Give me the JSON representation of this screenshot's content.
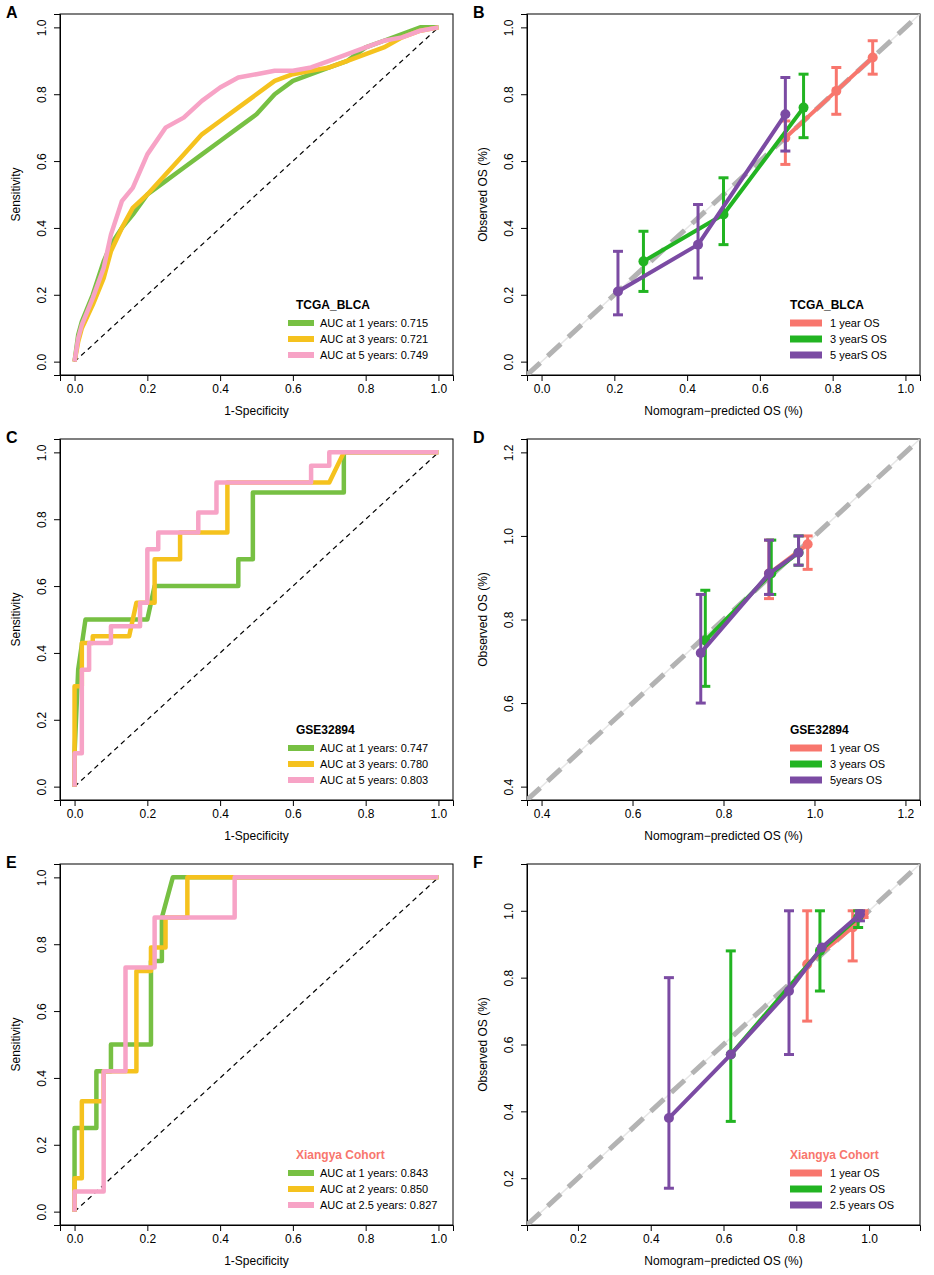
{
  "chart_data": [
    {
      "type": "line",
      "title": "A",
      "x_label": "1-Specificity",
      "y_label": "Sensitivity",
      "legend_title": "TCGA_BLCA",
      "legend": "bottom-right",
      "xlim": [
        -0.04,
        1.04
      ],
      "ylim": [
        -0.04,
        1.04
      ],
      "xticks": [
        {
          "value": 0,
          "label": "0.0"
        },
        {
          "value": 0.2,
          "label": "0.2"
        },
        {
          "value": 0.4,
          "label": "0.4"
        },
        {
          "value": 0.6,
          "label": "0.6"
        },
        {
          "value": 0.8,
          "label": "0.8"
        },
        {
          "value": 1,
          "label": "1.0"
        }
      ],
      "yticks": [
        {
          "value": 0,
          "label": "0.0"
        },
        {
          "value": 0.2,
          "label": "0.2"
        },
        {
          "value": 0.4,
          "label": "0.4"
        },
        {
          "value": 0.6,
          "label": "0.6"
        },
        {
          "value": 0.8,
          "label": "0.8"
        },
        {
          "value": 1,
          "label": "1.0"
        }
      ],
      "series": [
        {
          "name": "AUC at 1 years: 0.715",
          "color": "#77c043",
          "x": [
            0,
            0.01,
            0.02,
            0.05,
            0.08,
            0.1,
            0.13,
            0.16,
            0.2,
            0.25,
            0.3,
            0.35,
            0.4,
            0.45,
            0.5,
            0.55,
            0.6,
            0.65,
            0.7,
            0.75,
            0.8,
            0.85,
            0.9,
            0.95,
            1.0
          ],
          "values": [
            0,
            0.08,
            0.12,
            0.2,
            0.3,
            0.35,
            0.4,
            0.44,
            0.5,
            0.54,
            0.58,
            0.62,
            0.66,
            0.7,
            0.74,
            0.8,
            0.84,
            0.86,
            0.88,
            0.9,
            0.94,
            0.96,
            0.98,
            1.0,
            1.0
          ]
        },
        {
          "name": "AUC at 3 years: 0.721",
          "color": "#f5c21e",
          "x": [
            0,
            0.01,
            0.02,
            0.05,
            0.08,
            0.1,
            0.13,
            0.16,
            0.2,
            0.25,
            0.3,
            0.35,
            0.4,
            0.45,
            0.5,
            0.55,
            0.6,
            0.65,
            0.7,
            0.75,
            0.8,
            0.85,
            0.9,
            0.95,
            1.0
          ],
          "values": [
            0,
            0.06,
            0.1,
            0.17,
            0.25,
            0.33,
            0.4,
            0.46,
            0.5,
            0.56,
            0.62,
            0.68,
            0.72,
            0.76,
            0.8,
            0.84,
            0.86,
            0.87,
            0.88,
            0.9,
            0.92,
            0.94,
            0.97,
            0.99,
            1.0
          ]
        },
        {
          "name": "AUC at 5 years: 0.749",
          "color": "#f7a3c6",
          "x": [
            0,
            0.01,
            0.02,
            0.05,
            0.08,
            0.1,
            0.13,
            0.16,
            0.2,
            0.25,
            0.3,
            0.35,
            0.4,
            0.45,
            0.5,
            0.55,
            0.6,
            0.65,
            0.7,
            0.75,
            0.8,
            0.85,
            0.9,
            0.95,
            1.0
          ],
          "values": [
            0,
            0.07,
            0.11,
            0.19,
            0.28,
            0.38,
            0.48,
            0.52,
            0.62,
            0.7,
            0.73,
            0.78,
            0.82,
            0.85,
            0.86,
            0.87,
            0.87,
            0.88,
            0.9,
            0.92,
            0.94,
            0.96,
            0.97,
            0.99,
            1.0
          ]
        }
      ]
    },
    {
      "type": "line",
      "title": "B",
      "x_label": "Nomogram−predicted OS (%)",
      "y_label": "Observed OS (%)",
      "legend_title": "TCGA_BLCA",
      "legend": "bottom-right",
      "marker": "circle",
      "xlim": [
        -0.04,
        1.04
      ],
      "ylim": [
        -0.04,
        1.04
      ],
      "xticks": [
        {
          "value": 0,
          "label": "0.0"
        },
        {
          "value": 0.2,
          "label": "0.2"
        },
        {
          "value": 0.4,
          "label": "0.4"
        },
        {
          "value": 0.6,
          "label": "0.6"
        },
        {
          "value": 0.8,
          "label": "0.8"
        },
        {
          "value": 1,
          "label": "1.0"
        }
      ],
      "yticks": [
        {
          "value": 0,
          "label": "0.0"
        },
        {
          "value": 0.2,
          "label": "0.2"
        },
        {
          "value": 0.4,
          "label": "0.4"
        },
        {
          "value": 0.6,
          "label": "0.6"
        },
        {
          "value": 0.8,
          "label": "0.8"
        },
        {
          "value": 1,
          "label": "1.0"
        }
      ],
      "series": [
        {
          "name": "1 year OS",
          "color": "#f8766d",
          "x": [
            0.67,
            0.81,
            0.91
          ],
          "values": [
            0.67,
            0.81,
            0.91
          ],
          "lower": [
            0.59,
            0.74,
            0.86
          ],
          "upper": [
            0.72,
            0.88,
            0.96
          ]
        },
        {
          "name": "3 yearS OS",
          "color": "#22b422",
          "x": [
            0.28,
            0.5,
            0.72
          ],
          "values": [
            0.3,
            0.44,
            0.76
          ],
          "lower": [
            0.21,
            0.35,
            0.67
          ],
          "upper": [
            0.39,
            0.55,
            0.86
          ]
        },
        {
          "name": "5 yearS OS",
          "color": "#7b4ba3",
          "x": [
            0.21,
            0.43,
            0.67
          ],
          "values": [
            0.21,
            0.35,
            0.74
          ],
          "lower": [
            0.14,
            0.25,
            0.63
          ],
          "upper": [
            0.33,
            0.47,
            0.85
          ]
        }
      ]
    },
    {
      "type": "line",
      "title": "C",
      "x_label": "1-Specificity",
      "y_label": "Sensitivity",
      "legend_title": "GSE32894",
      "legend": "bottom-right",
      "xlim": [
        -0.04,
        1.04
      ],
      "ylim": [
        -0.04,
        1.04
      ],
      "xticks": [
        {
          "value": 0,
          "label": "0.0"
        },
        {
          "value": 0.2,
          "label": "0.2"
        },
        {
          "value": 0.4,
          "label": "0.4"
        },
        {
          "value": 0.6,
          "label": "0.6"
        },
        {
          "value": 0.8,
          "label": "0.8"
        },
        {
          "value": 1,
          "label": "1.0"
        }
      ],
      "yticks": [
        {
          "value": 0,
          "label": "0.0"
        },
        {
          "value": 0.2,
          "label": "0.2"
        },
        {
          "value": 0.4,
          "label": "0.4"
        },
        {
          "value": 0.6,
          "label": "0.6"
        },
        {
          "value": 0.8,
          "label": "0.8"
        },
        {
          "value": 1,
          "label": "1.0"
        }
      ],
      "series": [
        {
          "name": "AUC at 1 years: 0.747",
          "color": "#77c043",
          "x": [
            0,
            0,
            0.01,
            0.03,
            0.2,
            0.22,
            0.45,
            0.45,
            0.49,
            0.49,
            0.74,
            0.74,
            1
          ],
          "values": [
            0,
            0.1,
            0.35,
            0.5,
            0.5,
            0.6,
            0.6,
            0.68,
            0.68,
            0.88,
            0.88,
            1.0,
            1
          ]
        },
        {
          "name": "AUC at 3 years: 0.780",
          "color": "#f5c21e",
          "x": [
            0,
            0,
            0.02,
            0.02,
            0.05,
            0.05,
            0.15,
            0.17,
            0.22,
            0.22,
            0.29,
            0.29,
            0.42,
            0.42,
            0.7,
            0.74,
            1
          ],
          "values": [
            0,
            0.3,
            0.3,
            0.43,
            0.43,
            0.45,
            0.45,
            0.55,
            0.55,
            0.68,
            0.68,
            0.76,
            0.76,
            0.91,
            0.91,
            1.0,
            1
          ]
        },
        {
          "name": "AUC at 5 years: 0.803",
          "color": "#f7a3c6",
          "x": [
            0,
            0,
            0.02,
            0.02,
            0.04,
            0.04,
            0.1,
            0.1,
            0.18,
            0.18,
            0.2,
            0.2,
            0.23,
            0.23,
            0.34,
            0.34,
            0.39,
            0.39,
            0.65,
            0.65,
            0.7,
            0.7,
            1
          ],
          "values": [
            0,
            0.1,
            0.1,
            0.35,
            0.35,
            0.43,
            0.43,
            0.48,
            0.48,
            0.55,
            0.55,
            0.71,
            0.71,
            0.76,
            0.76,
            0.82,
            0.82,
            0.91,
            0.91,
            0.96,
            0.96,
            1.0,
            1
          ]
        }
      ]
    },
    {
      "type": "line",
      "title": "D",
      "x_label": "Nomogram−predicted OS (%)",
      "y_label": "Observed OS (%)",
      "legend_title": "GSE32894",
      "legend": "bottom-right",
      "marker": "circle",
      "xlim": [
        0.368,
        1.232
      ],
      "ylim": [
        0.368,
        1.232
      ],
      "xticks": [
        0.4,
        0.6,
        0.8,
        {
          "value": 1,
          "label": "1.0"
        },
        1.2
      ],
      "yticks": [
        0.4,
        0.6,
        0.8,
        {
          "value": 1,
          "label": "1.0"
        },
        1.2
      ],
      "series": [
        {
          "name": "1 year OS",
          "color": "#f8766d",
          "x": [
            0.9,
            0.985
          ],
          "values": [
            0.91,
            0.98
          ],
          "lower": [
            0.85,
            0.92
          ],
          "upper": [
            0.99,
            1.0
          ]
        },
        {
          "name": "3 years OS",
          "color": "#22b422",
          "x": [
            0.76,
            0.905,
            0.965
          ],
          "values": [
            0.75,
            0.91,
            0.96
          ],
          "lower": [
            0.64,
            0.86,
            0.93
          ],
          "upper": [
            0.87,
            0.99,
            1.0
          ]
        },
        {
          "name": "5years OS",
          "color": "#7b4ba3",
          "x": [
            0.75,
            0.9,
            0.965
          ],
          "values": [
            0.72,
            0.91,
            0.96
          ],
          "lower": [
            0.6,
            0.86,
            0.93
          ],
          "upper": [
            0.86,
            0.99,
            1.0
          ]
        }
      ]
    },
    {
      "type": "line",
      "title": "E",
      "x_label": "1-Specificity",
      "y_label": "Sensitivity",
      "legend_title": "Xiangya Cohort",
      "legend": "bottom-right",
      "xlim": [
        -0.04,
        1.04
      ],
      "ylim": [
        -0.04,
        1.04
      ],
      "xticks": [
        {
          "value": 0,
          "label": "0.0"
        },
        {
          "value": 0.2,
          "label": "0.2"
        },
        {
          "value": 0.4,
          "label": "0.4"
        },
        {
          "value": 0.6,
          "label": "0.6"
        },
        {
          "value": 0.8,
          "label": "0.8"
        },
        {
          "value": 1,
          "label": "1.0"
        }
      ],
      "yticks": [
        {
          "value": 0,
          "label": "0.0"
        },
        {
          "value": 0.2,
          "label": "0.2"
        },
        {
          "value": 0.4,
          "label": "0.4"
        },
        {
          "value": 0.6,
          "label": "0.6"
        },
        {
          "value": 0.8,
          "label": "0.8"
        },
        {
          "value": 1,
          "label": "1.0"
        }
      ],
      "series": [
        {
          "name": "AUC at 1 years: 0.843",
          "color": "#77c043",
          "x": [
            0,
            0,
            0.06,
            0.06,
            0.1,
            0.1,
            0.21,
            0.21,
            0.24,
            0.24,
            0.27,
            1
          ],
          "values": [
            0,
            0.25,
            0.25,
            0.42,
            0.42,
            0.5,
            0.5,
            0.75,
            0.75,
            0.88,
            1.0,
            1
          ]
        },
        {
          "name": "AUC at 2 years: 0.850",
          "color": "#f5c21e",
          "x": [
            0,
            0,
            0.02,
            0.02,
            0.08,
            0.08,
            0.17,
            0.17,
            0.21,
            0.21,
            0.25,
            0.25,
            0.31,
            0.31,
            1
          ],
          "values": [
            0,
            0.1,
            0.1,
            0.33,
            0.33,
            0.42,
            0.42,
            0.72,
            0.72,
            0.79,
            0.79,
            0.88,
            0.88,
            1.0,
            1
          ]
        },
        {
          "name": "AUC at 2.5 years: 0.827",
          "color": "#f7a3c6",
          "x": [
            0,
            0,
            0.08,
            0.08,
            0.14,
            0.14,
            0.22,
            0.22,
            0.44,
            0.44,
            1
          ],
          "values": [
            0,
            0.06,
            0.06,
            0.42,
            0.42,
            0.73,
            0.73,
            0.88,
            0.88,
            1.0,
            1
          ]
        }
      ]
    },
    {
      "type": "line",
      "title": "F",
      "x_label": "Nomogram−predicted OS (%)",
      "y_label": "Observed OS (%)",
      "legend_title": "Xiangya Cohort",
      "legend": "bottom-right",
      "marker": "circle",
      "xlim": [
        0.06,
        1.14
      ],
      "ylim": [
        0.06,
        1.14
      ],
      "xticks": [
        0.2,
        0.4,
        0.6,
        0.8,
        {
          "value": 1,
          "label": "1.0"
        }
      ],
      "yticks": [
        0.2,
        0.4,
        0.6,
        0.8,
        {
          "value": 1,
          "label": "1.0"
        }
      ],
      "series": [
        {
          "name": "1 year OS",
          "color": "#f8766d",
          "x": [
            0.83,
            0.955,
            0.985
          ],
          "values": [
            0.84,
            0.95,
            0.99
          ],
          "lower": [
            0.67,
            0.85,
            0.98
          ],
          "upper": [
            1.0,
            1.0,
            1.0
          ]
        },
        {
          "name": "2 years OS",
          "color": "#22b422",
          "x": [
            0.62,
            0.865,
            0.97
          ],
          "values": [
            0.57,
            0.88,
            0.98
          ],
          "lower": [
            0.37,
            0.76,
            0.95
          ],
          "upper": [
            0.88,
            1.0,
            1.0
          ]
        },
        {
          "name": "2.5 years OS",
          "color": "#7b4ba3",
          "x": [
            0.45,
            0.62,
            0.78,
            0.87,
            0.975
          ],
          "values": [
            0.38,
            0.57,
            0.76,
            0.89,
            0.99
          ],
          "lower": [
            0.17,
            null,
            0.57,
            null,
            0.97
          ],
          "upper": [
            0.8,
            null,
            1.0,
            null,
            1.0
          ]
        }
      ]
    }
  ]
}
